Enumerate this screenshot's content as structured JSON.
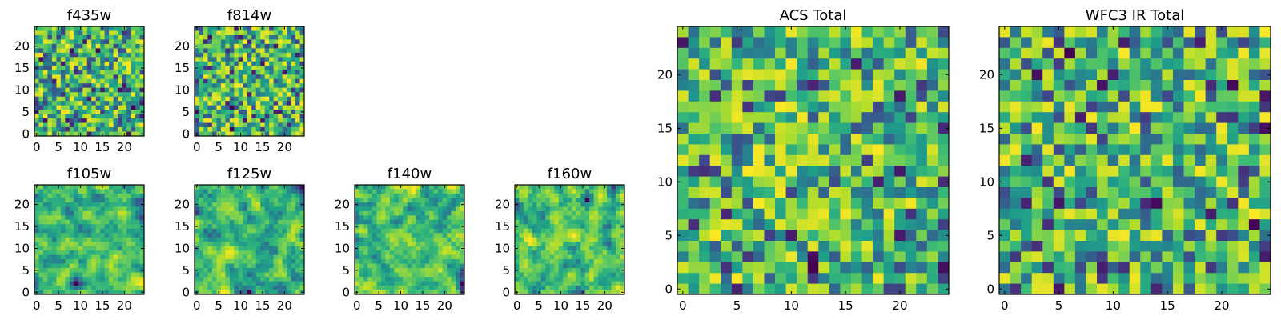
{
  "chart_data": [
    {
      "type": "heatmap",
      "title": "f435w",
      "grid_size": 25,
      "xticks": [
        0,
        5,
        10,
        15,
        20
      ],
      "yticks": [
        0,
        5,
        10,
        15,
        20
      ],
      "xlim": [
        -0.5,
        24.5
      ],
      "ylim": [
        -0.5,
        24.5
      ],
      "colormap": "viridis",
      "noise_seed": 11,
      "smooth": false
    },
    {
      "type": "heatmap",
      "title": "f814w",
      "grid_size": 25,
      "xticks": [
        0,
        5,
        10,
        15,
        20
      ],
      "yticks": [
        0,
        5,
        10,
        15,
        20
      ],
      "xlim": [
        -0.5,
        24.5
      ],
      "ylim": [
        -0.5,
        24.5
      ],
      "colormap": "viridis",
      "noise_seed": 23,
      "smooth": false
    },
    {
      "type": "heatmap",
      "title": "f105w",
      "grid_size": 25,
      "xticks": [
        0,
        5,
        10,
        15,
        20
      ],
      "yticks": [
        0,
        5,
        10,
        15,
        20
      ],
      "xlim": [
        -0.5,
        24.5
      ],
      "ylim": [
        -0.5,
        24.5
      ],
      "colormap": "viridis",
      "noise_seed": 37,
      "smooth": true
    },
    {
      "type": "heatmap",
      "title": "f125w",
      "grid_size": 25,
      "xticks": [
        0,
        5,
        10,
        15,
        20
      ],
      "yticks": [
        0,
        5,
        10,
        15,
        20
      ],
      "xlim": [
        -0.5,
        24.5
      ],
      "ylim": [
        -0.5,
        24.5
      ],
      "colormap": "viridis",
      "noise_seed": 41,
      "smooth": true
    },
    {
      "type": "heatmap",
      "title": "f140w",
      "grid_size": 25,
      "xticks": [
        0,
        5,
        10,
        15,
        20
      ],
      "yticks": [
        0,
        5,
        10,
        15,
        20
      ],
      "xlim": [
        -0.5,
        24.5
      ],
      "ylim": [
        -0.5,
        24.5
      ],
      "colormap": "viridis",
      "noise_seed": 53,
      "smooth": true
    },
    {
      "type": "heatmap",
      "title": "f160w",
      "grid_size": 25,
      "xticks": [
        0,
        5,
        10,
        15,
        20
      ],
      "yticks": [
        0,
        5,
        10,
        15,
        20
      ],
      "xlim": [
        -0.5,
        24.5
      ],
      "ylim": [
        -0.5,
        24.5
      ],
      "colormap": "viridis",
      "noise_seed": 67,
      "smooth": true
    },
    {
      "type": "heatmap",
      "title": "ACS Total",
      "grid_size": 25,
      "xticks": [
        0,
        5,
        10,
        15,
        20
      ],
      "yticks": [
        0,
        5,
        10,
        15,
        20
      ],
      "xlim": [
        -0.5,
        24.5
      ],
      "ylim": [
        -0.5,
        24.5
      ],
      "colormap": "viridis",
      "noise_seed": 71,
      "smooth": false
    },
    {
      "type": "heatmap",
      "title": "WFC3 IR Total",
      "grid_size": 25,
      "xticks": [
        0,
        5,
        10,
        15,
        20
      ],
      "yticks": [
        0,
        5,
        10,
        15,
        20
      ],
      "xlim": [
        -0.5,
        24.5
      ],
      "ylim": [
        -0.5,
        24.5
      ],
      "colormap": "viridis",
      "noise_seed": 89,
      "smooth": false
    }
  ],
  "colors": {
    "frame": "#000000",
    "background": "#ffffff",
    "viridis": [
      "#440154",
      "#482878",
      "#3e4989",
      "#31688e",
      "#26828e",
      "#1f9e89",
      "#35b779",
      "#6ece58",
      "#b5de2b",
      "#fde725"
    ]
  }
}
